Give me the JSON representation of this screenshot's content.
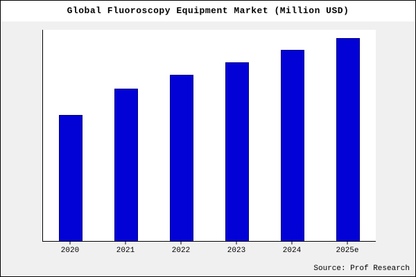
{
  "title": "Global Fluoroscopy Equipment Market (Million USD)",
  "source": "Source: Prof Research",
  "colors": {
    "bar_fill": "#0202d6",
    "bar_border": "#000080",
    "chart_background": "#f0f0f0",
    "plot_background": "#ffffff",
    "axis": "#000000"
  },
  "chart_data": {
    "type": "bar",
    "categories": [
      "2020",
      "2021",
      "2022",
      "2023",
      "2024",
      "2025e"
    ],
    "values": [
      62,
      75,
      82,
      88,
      94,
      100
    ],
    "title": "Global Fluoroscopy Equipment Market (Million USD)",
    "xlabel": "",
    "ylabel": "",
    "ylim": [
      0,
      104
    ],
    "grid": false,
    "legend": false,
    "annotations": [
      "Source: Prof Research"
    ]
  }
}
